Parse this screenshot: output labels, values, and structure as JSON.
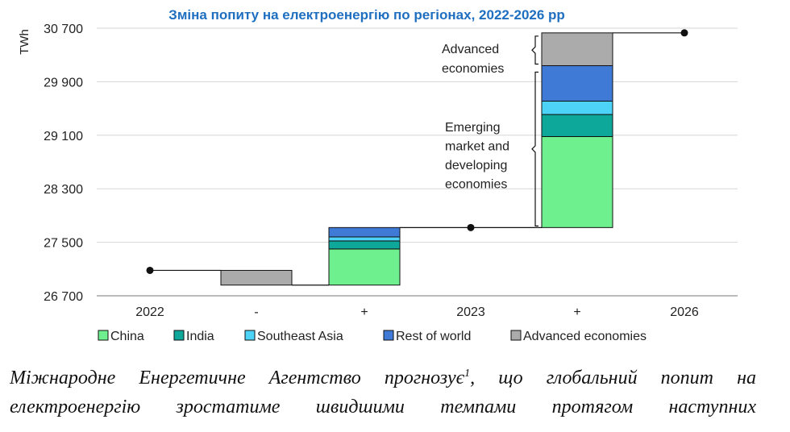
{
  "chart_data": {
    "type": "waterfall-stacked-bar",
    "title": "Зміна попиту на електроенергію по регіонах, 2022-2026 рр",
    "ylabel": "TWh",
    "ylim": [
      26700,
      30700
    ],
    "yticks": [
      26700,
      27500,
      28300,
      29100,
      29900,
      30700
    ],
    "ytick_labels": [
      "26 700",
      "27 500",
      "28 300",
      "29 100",
      "29 900",
      "30 700"
    ],
    "categories": [
      "2022",
      "-",
      "+",
      "2023",
      "+",
      "2026"
    ],
    "totals": [
      {
        "category": "2022",
        "value": 27080
      },
      {
        "category": "2023",
        "value": 27720
      },
      {
        "category": "2026",
        "value": 30630
      }
    ],
    "series": [
      {
        "name": "China",
        "color": "#6ef08f",
        "key": "china"
      },
      {
        "name": "India",
        "color": "#0ea89a",
        "key": "india"
      },
      {
        "name": "Southeast Asia",
        "color": "#4dd3f7",
        "key": "sea"
      },
      {
        "name": "Rest of world",
        "color": "#3f7bd6",
        "key": "row"
      },
      {
        "name": "Advanced economies",
        "color": "#ababab",
        "key": "adv"
      }
    ],
    "segments": [
      {
        "category": "-",
        "series": "Advanced economies",
        "from": 26860,
        "to": 27080
      },
      {
        "category": "+",
        "series": "China",
        "from": 26860,
        "to": 27400
      },
      {
        "category": "+",
        "series": "India",
        "from": 27400,
        "to": 27520
      },
      {
        "category": "+",
        "series": "Southeast Asia",
        "from": 27520,
        "to": 27580
      },
      {
        "category": "+",
        "series": "Rest of world",
        "from": 27580,
        "to": 27720
      },
      {
        "category": "+ ",
        "series": "China",
        "from": 27720,
        "to": 29080
      },
      {
        "category": "+ ",
        "series": "India",
        "from": 29080,
        "to": 29410
      },
      {
        "category": "+ ",
        "series": "Southeast Asia",
        "from": 29410,
        "to": 29610
      },
      {
        "category": "+ ",
        "series": "Rest of world",
        "from": 29610,
        "to": 30140
      },
      {
        "category": "+ ",
        "series": "Advanced economies",
        "from": 30140,
        "to": 30630
      }
    ],
    "annotations": {
      "advanced": [
        "Advanced",
        "economies"
      ],
      "emerging": [
        "Emerging",
        "market and",
        "developing",
        "economies"
      ]
    }
  },
  "caption": {
    "line1": "Міжнародне Енергетичне Агентство прогнозує",
    "footnote": "1",
    "line1_rest": ", що глобальний попит на",
    "line2": "електроенергію зростатиме швидшими темпами протягом наступних"
  }
}
